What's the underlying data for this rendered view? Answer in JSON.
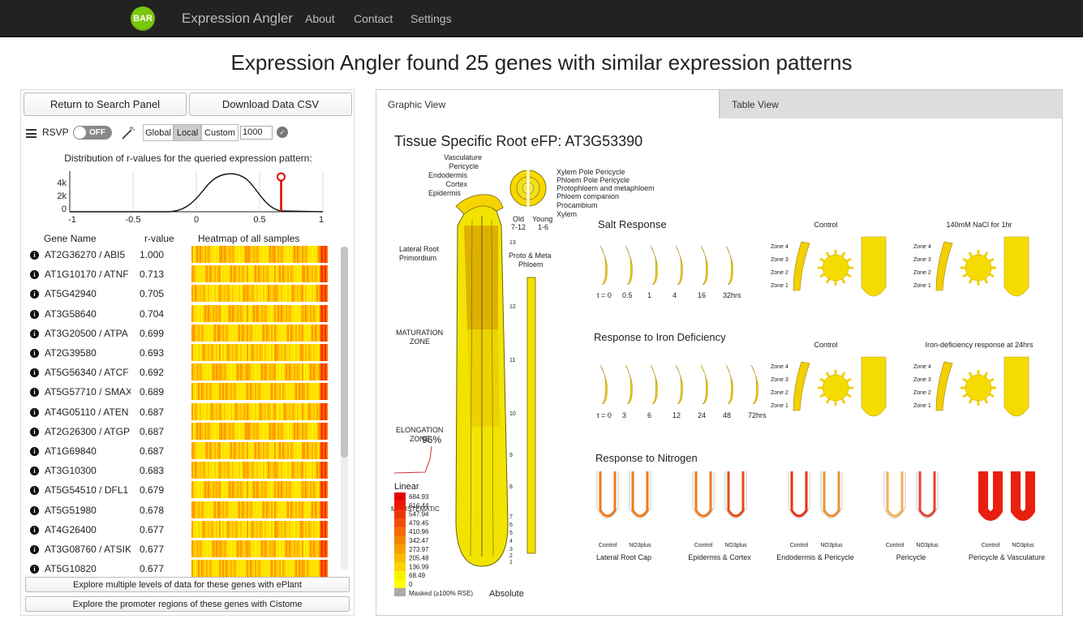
{
  "navbar": {
    "logo_text": "BAR",
    "brand": "Expression Angler",
    "links": [
      "About",
      "Contact",
      "Settings"
    ]
  },
  "page_title": "Expression Angler found 25 genes with similar expression patterns",
  "left_panel": {
    "return_button": "Return to Search Panel",
    "download_button": "Download Data CSV",
    "rsvp_label": "RSVP",
    "rsvp_toggle": "OFF",
    "segments": [
      "Global",
      "Local",
      "Custom"
    ],
    "active_segment": "Local",
    "custom_value": "1000",
    "distribution_title": "Distribution of r-values for the queried expression pattern:",
    "distribution": {
      "y_ticks": [
        "4k",
        "2k",
        "0"
      ],
      "x_ticks": [
        "-1",
        "-0.5",
        "0",
        "0.5",
        "1"
      ],
      "marker_r": 0.67
    },
    "columns": [
      "Gene Name",
      "r-value",
      "Heatmap of all samples"
    ],
    "genes": [
      {
        "name": "AT2G36270 / ABI5",
        "r": "1.000"
      },
      {
        "name": "AT1G10170 / ATNF",
        "r": "0.713"
      },
      {
        "name": "AT5G42940",
        "r": "0.705"
      },
      {
        "name": "AT3G58640",
        "r": "0.704"
      },
      {
        "name": "AT3G20500 / ATPA",
        "r": "0.699"
      },
      {
        "name": "AT2G39580",
        "r": "0.693"
      },
      {
        "name": "AT5G56340 / ATCF",
        "r": "0.692"
      },
      {
        "name": "AT5G57710 / SMAX",
        "r": "0.689"
      },
      {
        "name": "AT4G05110 / ATEN",
        "r": "0.687"
      },
      {
        "name": "AT2G26300 / ATGP",
        "r": "0.687"
      },
      {
        "name": "AT1G69840",
        "r": "0.687"
      },
      {
        "name": "AT3G10300",
        "r": "0.683"
      },
      {
        "name": "AT5G54510 / DFL1",
        "r": "0.679"
      },
      {
        "name": "AT5G51980",
        "r": "0.678"
      },
      {
        "name": "AT4G26400",
        "r": "0.677"
      },
      {
        "name": "AT3G08760 / ATSIK",
        "r": "0.677"
      },
      {
        "name": "AT5G10820",
        "r": "0.677"
      }
    ],
    "eplant_button": "Explore multiple levels of data for these genes with ePlant",
    "cistome_button": "Explore the promoter regions of these genes with Cistome"
  },
  "tabs": [
    "Graphic View",
    "Table View"
  ],
  "active_tab": "Graphic View",
  "efp": {
    "title": "Tissue Specific Root eFP: AT3G53390",
    "tissue_labels": [
      "Vasculature",
      "Pericycle",
      "Endodermis",
      "Cortex",
      "Epidermis"
    ],
    "cross_section_labels": [
      "Xylem Pole Pericycle",
      "Phloem Pole Pericycle",
      "Protophloem and metaphloem",
      "Phloem companion",
      "Procambium",
      "Xylem"
    ],
    "old_label": "Old",
    "old_range": "7-12",
    "young_label": "Young",
    "young_range": "1-6",
    "lateral_root": "Lateral Root",
    "primordium": "Primordium",
    "proto_meta": "Proto & Meta",
    "phloem": "Phloem",
    "maturation": "MATURATION",
    "maturation_zone": "ZONE",
    "elongation": "ELONGATION",
    "elongation_zone": "ZONE",
    "meristematic": "MERISTEMATIC",
    "percent": "96%",
    "section_numbers": [
      "13",
      "12",
      "11",
      "10",
      "9",
      "8",
      "7",
      "6",
      "5",
      "4",
      "3",
      "2",
      "1"
    ],
    "legend_title": "Linear",
    "legend_values": [
      "684.93",
      "616.44",
      "547.94",
      "479.45",
      "410.96",
      "342.47",
      "273.97",
      "205.48",
      "136.99",
      "68.49",
      "0"
    ],
    "legend_colors": [
      "#e60000",
      "#ea1a00",
      "#ee3500",
      "#f04f00",
      "#f26a00",
      "#f48500",
      "#f7a000",
      "#f9bb00",
      "#fbd500",
      "#fdf000",
      "#ffff00"
    ],
    "masked_label": "Masked (≥100% RSE)",
    "absolute_label": "Absolute",
    "salt": {
      "title": "Salt Response",
      "control": "Control",
      "treatment": "140mM NaCl for 1hr",
      "timepoints": [
        "t = 0",
        "0.5",
        "1",
        "4",
        "16",
        "32hrs"
      ],
      "zones": [
        "Zone 4",
        "Zone 3",
        "Zone 2",
        "Zone 1"
      ]
    },
    "iron": {
      "title": "Response to Iron Deficiency",
      "control": "Control",
      "treatment": "Iron-deficiency response at 24hrs",
      "timepoints": [
        "t = 0",
        "3",
        "6",
        "12",
        "24",
        "48",
        "72hrs"
      ],
      "zones": [
        "Zone 4",
        "Zone 3",
        "Zone 2",
        "Zone 1"
      ]
    },
    "nitrogen": {
      "title": "Response to Nitrogen",
      "groups": [
        {
          "label": "Lateral Root Cap",
          "control_color": "#f07a1a",
          "nitrate_color": "#f07a1a"
        },
        {
          "label": "Epidermis & Cortex",
          "control_color": "#f07a1a",
          "nitrate_color": "#e84a10"
        },
        {
          "label": "Endodermis & Pericycle",
          "control_color": "#e83010",
          "nitrate_color": "#f09030"
        },
        {
          "label": "Pericycle",
          "control_color": "#f8b050",
          "nitrate_color": "#e84030"
        },
        {
          "label": "Pericycle & Vasculature",
          "control_color": "#e82010",
          "nitrate_color": "#e82010"
        }
      ],
      "control_label": "Control",
      "nitrate_label": "NO3plus"
    }
  }
}
